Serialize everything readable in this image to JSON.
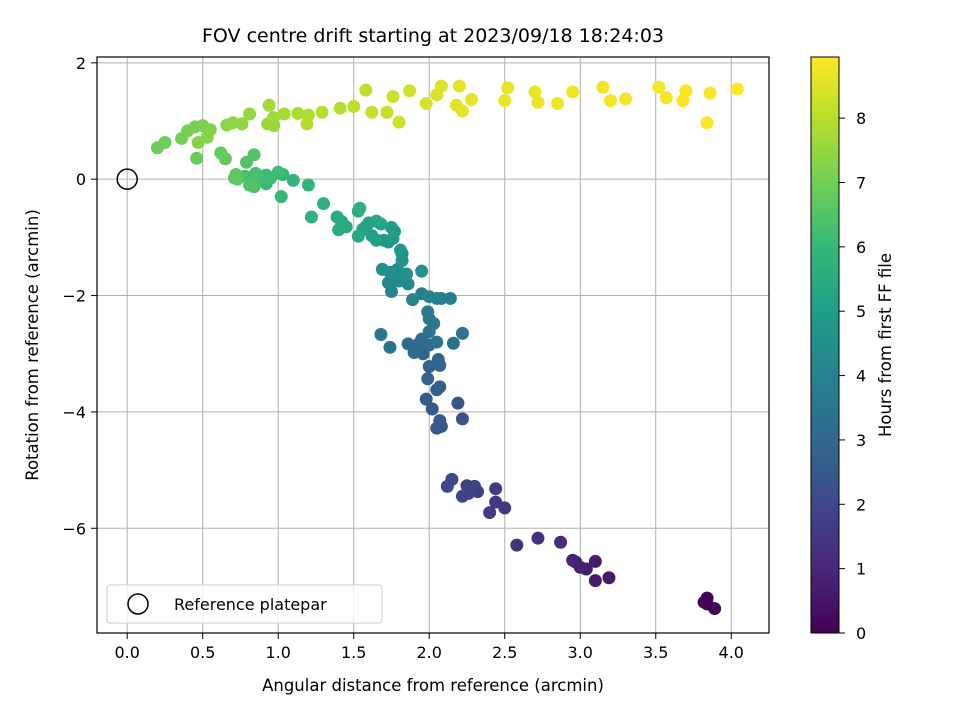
{
  "chart_data": {
    "type": "scatter",
    "title": "FOV centre drift starting at 2023/09/18 18:24:03",
    "xlabel": "Angular distance from reference (arcmin)",
    "ylabel": "Rotation from reference (arcmin)",
    "xlim": [
      -0.2,
      4.25
    ],
    "ylim": [
      -7.8,
      2.1
    ],
    "xticks": [
      "0.0",
      "0.5",
      "1.0",
      "1.5",
      "2.0",
      "2.5",
      "3.0",
      "3.5",
      "4.0"
    ],
    "xtick_values": [
      0,
      0.5,
      1,
      1.5,
      2,
      2.5,
      3,
      3.5,
      4
    ],
    "yticks": [
      "−6",
      "−4",
      "−2",
      "0",
      "2"
    ],
    "ytick_values": [
      -6,
      -4,
      -2,
      0,
      2
    ],
    "grid": true,
    "legend": {
      "location": "lower-left",
      "entries": [
        "Reference platepar"
      ]
    },
    "reference_point": {
      "x": 0,
      "y": 0
    },
    "colorbar": {
      "label": "Hours from first FF file",
      "range": [
        0,
        8.95
      ],
      "ticks": [
        "0",
        "1",
        "2",
        "3",
        "4",
        "5",
        "6",
        "7",
        "8"
      ],
      "tick_values": [
        0,
        1,
        2,
        3,
        4,
        5,
        6,
        7,
        8
      ],
      "colormap": "viridis"
    },
    "colormap_stops": [
      "#440154",
      "#482878",
      "#3e4989",
      "#31688e",
      "#26828e",
      "#1f9e89",
      "#35b779",
      "#6ece58",
      "#b5de2b",
      "#fde725"
    ],
    "points": [
      {
        "x": 3.84,
        "y": -7.3,
        "h": 0.05
      },
      {
        "x": 3.89,
        "y": -7.38,
        "h": 0.08
      },
      {
        "x": 3.84,
        "y": -7.2,
        "h": 0.1
      },
      {
        "x": 3.82,
        "y": -7.27,
        "h": 0.12
      },
      {
        "x": 3.19,
        "y": -6.85,
        "h": 0.6
      },
      {
        "x": 3.1,
        "y": -6.9,
        "h": 0.65
      },
      {
        "x": 3.1,
        "y": -6.57,
        "h": 0.7
      },
      {
        "x": 3.04,
        "y": -6.7,
        "h": 0.75
      },
      {
        "x": 3.0,
        "y": -6.67,
        "h": 0.8
      },
      {
        "x": 2.97,
        "y": -6.58,
        "h": 0.85
      },
      {
        "x": 2.95,
        "y": -6.55,
        "h": 0.9
      },
      {
        "x": 2.87,
        "y": -6.24,
        "h": 1.1
      },
      {
        "x": 2.72,
        "y": -6.17,
        "h": 1.2
      },
      {
        "x": 2.58,
        "y": -6.29,
        "h": 1.3
      },
      {
        "x": 2.5,
        "y": -5.65,
        "h": 1.5
      },
      {
        "x": 2.44,
        "y": -5.55,
        "h": 1.55
      },
      {
        "x": 2.4,
        "y": -5.73,
        "h": 1.6
      },
      {
        "x": 2.44,
        "y": -5.32,
        "h": 1.65
      },
      {
        "x": 2.32,
        "y": -5.37,
        "h": 1.7
      },
      {
        "x": 2.3,
        "y": -5.28,
        "h": 1.75
      },
      {
        "x": 2.26,
        "y": -5.4,
        "h": 1.8
      },
      {
        "x": 2.25,
        "y": -5.27,
        "h": 1.85
      },
      {
        "x": 2.22,
        "y": -5.45,
        "h": 1.9
      },
      {
        "x": 2.15,
        "y": -5.16,
        "h": 1.95
      },
      {
        "x": 2.12,
        "y": -5.28,
        "h": 2.0
      },
      {
        "x": 2.22,
        "y": -4.12,
        "h": 2.3
      },
      {
        "x": 2.19,
        "y": -3.85,
        "h": 2.35
      },
      {
        "x": 2.08,
        "y": -4.25,
        "h": 2.4
      },
      {
        "x": 2.05,
        "y": -4.28,
        "h": 2.45
      },
      {
        "x": 2.07,
        "y": -4.15,
        "h": 2.5
      },
      {
        "x": 2.02,
        "y": -3.95,
        "h": 2.55
      },
      {
        "x": 1.98,
        "y": -3.78,
        "h": 2.6
      },
      {
        "x": 2.07,
        "y": -3.57,
        "h": 2.65
      },
      {
        "x": 2.05,
        "y": -3.62,
        "h": 2.7
      },
      {
        "x": 1.99,
        "y": -3.43,
        "h": 2.75
      },
      {
        "x": 2.0,
        "y": -3.22,
        "h": 2.8
      },
      {
        "x": 2.06,
        "y": -3.1,
        "h": 2.85
      },
      {
        "x": 2.07,
        "y": -3.2,
        "h": 2.9
      },
      {
        "x": 1.96,
        "y": -3.0,
        "h": 2.95
      },
      {
        "x": 1.93,
        "y": -2.83,
        "h": 3.0
      },
      {
        "x": 1.86,
        "y": -2.83,
        "h": 3.05
      },
      {
        "x": 1.9,
        "y": -2.98,
        "h": 3.1
      },
      {
        "x": 1.95,
        "y": -2.75,
        "h": 3.15
      },
      {
        "x": 2.0,
        "y": -2.85,
        "h": 3.2
      },
      {
        "x": 2.05,
        "y": -2.8,
        "h": 3.25
      },
      {
        "x": 2.16,
        "y": -2.82,
        "h": 3.3
      },
      {
        "x": 2.22,
        "y": -2.65,
        "h": 3.35
      },
      {
        "x": 1.74,
        "y": -2.89,
        "h": 3.4
      },
      {
        "x": 1.68,
        "y": -2.67,
        "h": 3.45
      },
      {
        "x": 2.0,
        "y": -2.62,
        "h": 3.5
      },
      {
        "x": 2.03,
        "y": -2.48,
        "h": 3.55
      },
      {
        "x": 2.0,
        "y": -2.4,
        "h": 3.6
      },
      {
        "x": 1.99,
        "y": -2.28,
        "h": 3.65
      },
      {
        "x": 2.05,
        "y": -2.05,
        "h": 3.75
      },
      {
        "x": 2.08,
        "y": -2.05,
        "h": 3.8
      },
      {
        "x": 2.14,
        "y": -2.05,
        "h": 3.85
      },
      {
        "x": 1.95,
        "y": -1.97,
        "h": 3.9
      },
      {
        "x": 2.0,
        "y": -2.02,
        "h": 3.95
      },
      {
        "x": 1.89,
        "y": -2.07,
        "h": 4.0
      },
      {
        "x": 1.75,
        "y": -1.93,
        "h": 4.05
      },
      {
        "x": 1.73,
        "y": -1.78,
        "h": 4.1
      },
      {
        "x": 1.76,
        "y": -1.7,
        "h": 4.15
      },
      {
        "x": 1.8,
        "y": -1.75,
        "h": 4.2
      },
      {
        "x": 1.86,
        "y": -1.8,
        "h": 4.25
      },
      {
        "x": 1.82,
        "y": -1.65,
        "h": 4.3
      },
      {
        "x": 1.79,
        "y": -1.55,
        "h": 4.35
      },
      {
        "x": 1.74,
        "y": -1.6,
        "h": 4.4
      },
      {
        "x": 1.69,
        "y": -1.55,
        "h": 4.45
      },
      {
        "x": 1.85,
        "y": -1.63,
        "h": 4.5
      },
      {
        "x": 1.95,
        "y": -1.58,
        "h": 4.55
      },
      {
        "x": 1.82,
        "y": -1.4,
        "h": 4.6
      },
      {
        "x": 1.82,
        "y": -1.28,
        "h": 4.65
      },
      {
        "x": 1.81,
        "y": -1.22,
        "h": 4.7
      },
      {
        "x": 1.7,
        "y": -1.05,
        "h": 4.75
      },
      {
        "x": 1.73,
        "y": -1.08,
        "h": 4.8
      },
      {
        "x": 1.76,
        "y": -1.02,
        "h": 4.85
      },
      {
        "x": 1.77,
        "y": -0.9,
        "h": 4.9
      },
      {
        "x": 1.75,
        "y": -0.83,
        "h": 4.95
      },
      {
        "x": 1.65,
        "y": -1.05,
        "h": 5.0
      },
      {
        "x": 1.62,
        "y": -0.97,
        "h": 5.05
      },
      {
        "x": 1.58,
        "y": -0.82,
        "h": 5.1
      },
      {
        "x": 1.56,
        "y": -0.86,
        "h": 5.15
      },
      {
        "x": 1.6,
        "y": -0.75,
        "h": 5.2
      },
      {
        "x": 1.65,
        "y": -0.72,
        "h": 5.25
      },
      {
        "x": 1.68,
        "y": -0.77,
        "h": 5.3
      },
      {
        "x": 1.53,
        "y": -0.98,
        "h": 5.35
      },
      {
        "x": 1.45,
        "y": -0.82,
        "h": 5.4
      },
      {
        "x": 1.42,
        "y": -0.73,
        "h": 5.45
      },
      {
        "x": 1.39,
        "y": -0.65,
        "h": 5.5
      },
      {
        "x": 1.4,
        "y": -0.87,
        "h": 5.55
      },
      {
        "x": 1.53,
        "y": -0.55,
        "h": 5.6
      },
      {
        "x": 1.54,
        "y": -0.5,
        "h": 5.65
      },
      {
        "x": 1.3,
        "y": -0.42,
        "h": 5.7
      },
      {
        "x": 1.22,
        "y": -0.65,
        "h": 5.75
      },
      {
        "x": 1.2,
        "y": -0.1,
        "h": 5.8
      },
      {
        "x": 1.1,
        "y": -0.02,
        "h": 5.85
      },
      {
        "x": 1.03,
        "y": 0.08,
        "h": 5.9
      },
      {
        "x": 1.02,
        "y": -0.3,
        "h": 5.95
      },
      {
        "x": 0.92,
        "y": -0.08,
        "h": 6.0
      },
      {
        "x": 0.92,
        "y": 0.07,
        "h": 6.05
      },
      {
        "x": 1.0,
        "y": 0.12,
        "h": 6.1
      },
      {
        "x": 0.95,
        "y": 0.02,
        "h": 6.15
      },
      {
        "x": 0.88,
        "y": 0.0,
        "h": 6.2
      },
      {
        "x": 0.85,
        "y": 0.1,
        "h": 6.25
      },
      {
        "x": 0.83,
        "y": 0.0,
        "h": 6.3
      },
      {
        "x": 0.78,
        "y": 0.05,
        "h": 6.35
      },
      {
        "x": 0.81,
        "y": -0.1,
        "h": 6.4
      },
      {
        "x": 0.84,
        "y": -0.13,
        "h": 6.45
      },
      {
        "x": 0.79,
        "y": 0.29,
        "h": 6.5
      },
      {
        "x": 0.84,
        "y": 0.42,
        "h": 6.55
      },
      {
        "x": 0.72,
        "y": 0.08,
        "h": 6.6
      },
      {
        "x": 0.71,
        "y": 0.02,
        "h": 6.65
      },
      {
        "x": 0.73,
        "y": 0.0,
        "h": 6.7
      },
      {
        "x": 0.65,
        "y": 0.35,
        "h": 6.75
      },
      {
        "x": 0.62,
        "y": 0.45,
        "h": 6.8
      },
      {
        "x": 0.46,
        "y": 0.36,
        "h": 6.85
      },
      {
        "x": 0.2,
        "y": 0.54,
        "h": 6.9
      },
      {
        "x": 0.25,
        "y": 0.63,
        "h": 6.95
      },
      {
        "x": 0.36,
        "y": 0.7,
        "h": 7.0
      },
      {
        "x": 0.4,
        "y": 0.83,
        "h": 7.05
      },
      {
        "x": 0.45,
        "y": 0.9,
        "h": 7.1
      },
      {
        "x": 0.5,
        "y": 0.92,
        "h": 7.15
      },
      {
        "x": 0.55,
        "y": 0.85,
        "h": 7.2
      },
      {
        "x": 0.53,
        "y": 0.72,
        "h": 7.25
      },
      {
        "x": 0.47,
        "y": 0.63,
        "h": 7.3
      },
      {
        "x": 0.66,
        "y": 0.93,
        "h": 7.35
      },
      {
        "x": 0.7,
        "y": 0.97,
        "h": 7.4
      },
      {
        "x": 0.76,
        "y": 0.95,
        "h": 7.45
      },
      {
        "x": 0.81,
        "y": 1.12,
        "h": 7.5
      },
      {
        "x": 0.93,
        "y": 0.95,
        "h": 7.55
      },
      {
        "x": 0.97,
        "y": 0.92,
        "h": 7.6
      },
      {
        "x": 0.97,
        "y": 1.06,
        "h": 7.65
      },
      {
        "x": 0.94,
        "y": 1.27,
        "h": 7.7
      },
      {
        "x": 1.04,
        "y": 1.12,
        "h": 7.75
      },
      {
        "x": 1.13,
        "y": 1.13,
        "h": 7.8
      },
      {
        "x": 1.2,
        "y": 1.1,
        "h": 7.85
      },
      {
        "x": 1.19,
        "y": 0.95,
        "h": 7.9
      },
      {
        "x": 1.29,
        "y": 1.15,
        "h": 7.95
      },
      {
        "x": 1.41,
        "y": 1.22,
        "h": 8.0
      },
      {
        "x": 1.5,
        "y": 1.25,
        "h": 8.05
      },
      {
        "x": 1.58,
        "y": 1.53,
        "h": 8.1
      },
      {
        "x": 1.62,
        "y": 1.15,
        "h": 8.15
      },
      {
        "x": 1.72,
        "y": 1.15,
        "h": 8.2
      },
      {
        "x": 1.76,
        "y": 1.42,
        "h": 8.25
      },
      {
        "x": 1.8,
        "y": 0.98,
        "h": 8.3
      },
      {
        "x": 1.87,
        "y": 1.52,
        "h": 8.35
      },
      {
        "x": 1.98,
        "y": 1.3,
        "h": 8.4
      },
      {
        "x": 2.05,
        "y": 1.45,
        "h": 8.45
      },
      {
        "x": 2.08,
        "y": 1.6,
        "h": 8.5
      },
      {
        "x": 2.18,
        "y": 1.27,
        "h": 8.55
      },
      {
        "x": 2.2,
        "y": 1.6,
        "h": 8.6
      },
      {
        "x": 2.22,
        "y": 1.17,
        "h": 8.62
      },
      {
        "x": 2.28,
        "y": 1.37,
        "h": 8.64
      },
      {
        "x": 2.52,
        "y": 1.57,
        "h": 8.66
      },
      {
        "x": 2.5,
        "y": 1.35,
        "h": 8.68
      },
      {
        "x": 2.7,
        "y": 1.5,
        "h": 8.7
      },
      {
        "x": 2.72,
        "y": 1.32,
        "h": 8.72
      },
      {
        "x": 2.85,
        "y": 1.3,
        "h": 8.74
      },
      {
        "x": 2.95,
        "y": 1.5,
        "h": 8.76
      },
      {
        "x": 3.15,
        "y": 1.58,
        "h": 8.78
      },
      {
        "x": 3.2,
        "y": 1.35,
        "h": 8.8
      },
      {
        "x": 3.3,
        "y": 1.38,
        "h": 8.82
      },
      {
        "x": 3.52,
        "y": 1.58,
        "h": 8.84
      },
      {
        "x": 3.57,
        "y": 1.4,
        "h": 8.86
      },
      {
        "x": 3.68,
        "y": 1.35,
        "h": 8.88
      },
      {
        "x": 3.7,
        "y": 1.52,
        "h": 8.9
      },
      {
        "x": 3.84,
        "y": 0.97,
        "h": 8.91
      },
      {
        "x": 3.86,
        "y": 1.48,
        "h": 8.92
      },
      {
        "x": 4.04,
        "y": 1.55,
        "h": 8.95
      }
    ]
  }
}
